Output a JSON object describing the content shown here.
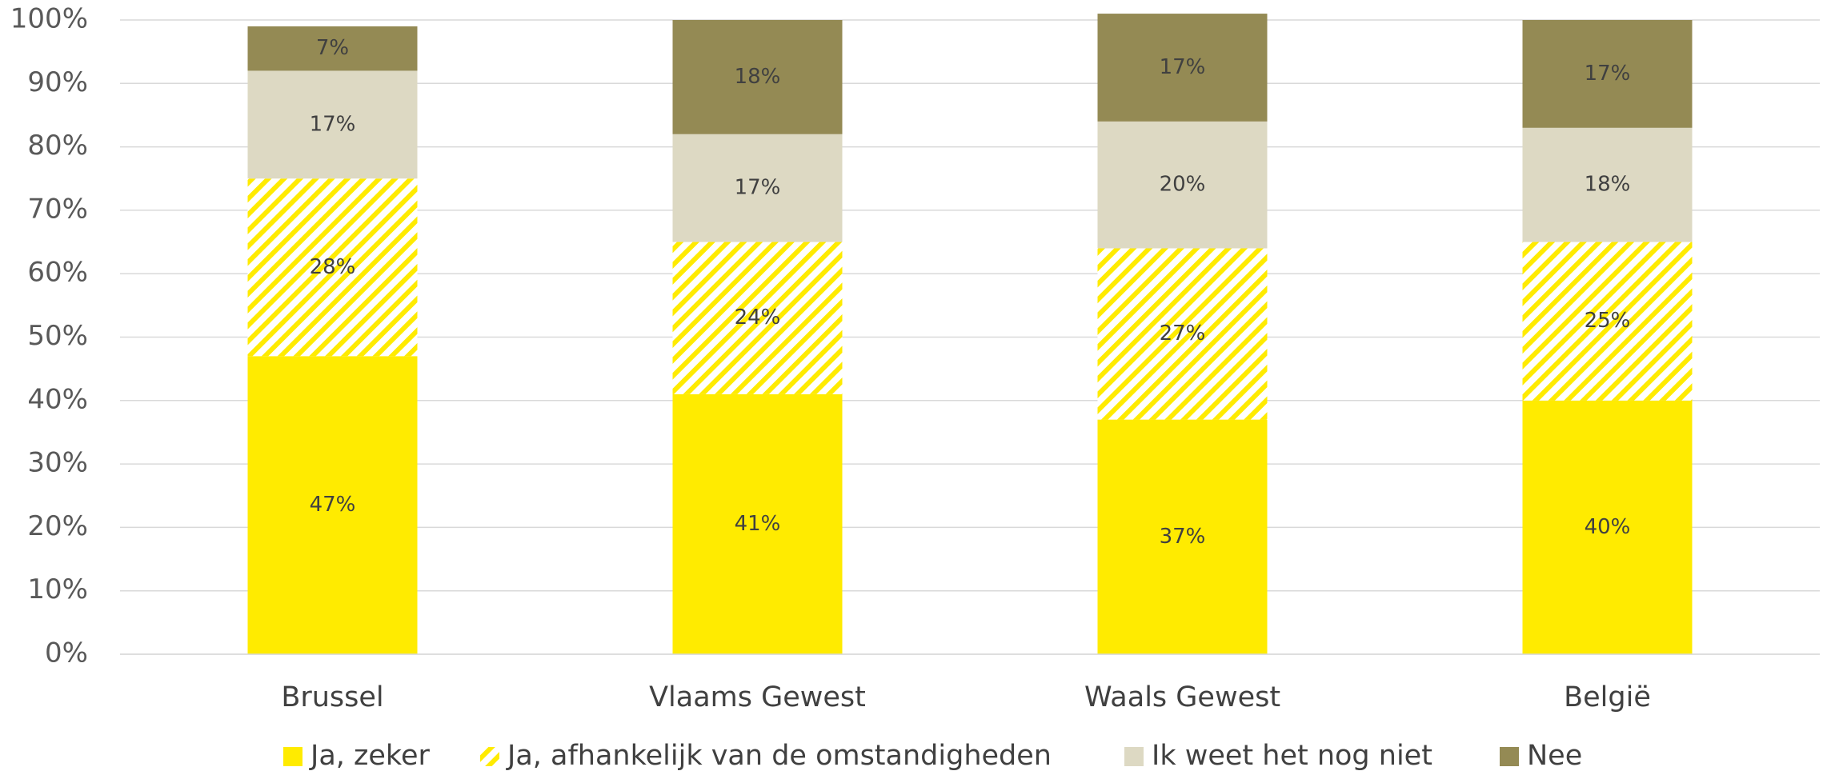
{
  "chart_data": {
    "type": "stacked_bar",
    "categories": [
      "Brussel",
      "Vlaams Gewest",
      "Waals Gewest",
      "België"
    ],
    "series": [
      {
        "name": "Ja, zeker",
        "color": "#FFEB00",
        "values": [
          47,
          41,
          37,
          40
        ],
        "value_labels": [
          "47%",
          "41%",
          "37%",
          "40%"
        ]
      },
      {
        "name": "Ja, afhankelijk van de omstandigheden",
        "color": "#FFEB00",
        "hatch": true,
        "values": [
          28,
          24,
          27,
          25
        ],
        "value_labels": [
          "28%",
          "24%",
          "27%",
          "25%"
        ]
      },
      {
        "name": "Ik weet het nog niet",
        "color": "#DDD9C3",
        "values": [
          17,
          17,
          20,
          18
        ],
        "value_labels": [
          "17%",
          "17%",
          "20%",
          "18%"
        ]
      },
      {
        "name": "Nee",
        "color": "#948A54",
        "values": [
          7,
          18,
          17,
          17
        ],
        "value_labels": [
          "7%",
          "18%",
          "17%",
          "17%"
        ]
      }
    ],
    "ylim": [
      0,
      100
    ],
    "yticks": [
      {
        "value": 0,
        "label": "0%"
      },
      {
        "value": 10,
        "label": "10%"
      },
      {
        "value": 20,
        "label": "20%"
      },
      {
        "value": 30,
        "label": "30%"
      },
      {
        "value": 40,
        "label": "40%"
      },
      {
        "value": 50,
        "label": "50%"
      },
      {
        "value": 60,
        "label": "60%"
      },
      {
        "value": 70,
        "label": "70%"
      },
      {
        "value": 80,
        "label": "80%"
      },
      {
        "value": 90,
        "label": "90%"
      },
      {
        "value": 100,
        "label": "100%"
      }
    ],
    "grid": true,
    "legend": "bottom"
  }
}
